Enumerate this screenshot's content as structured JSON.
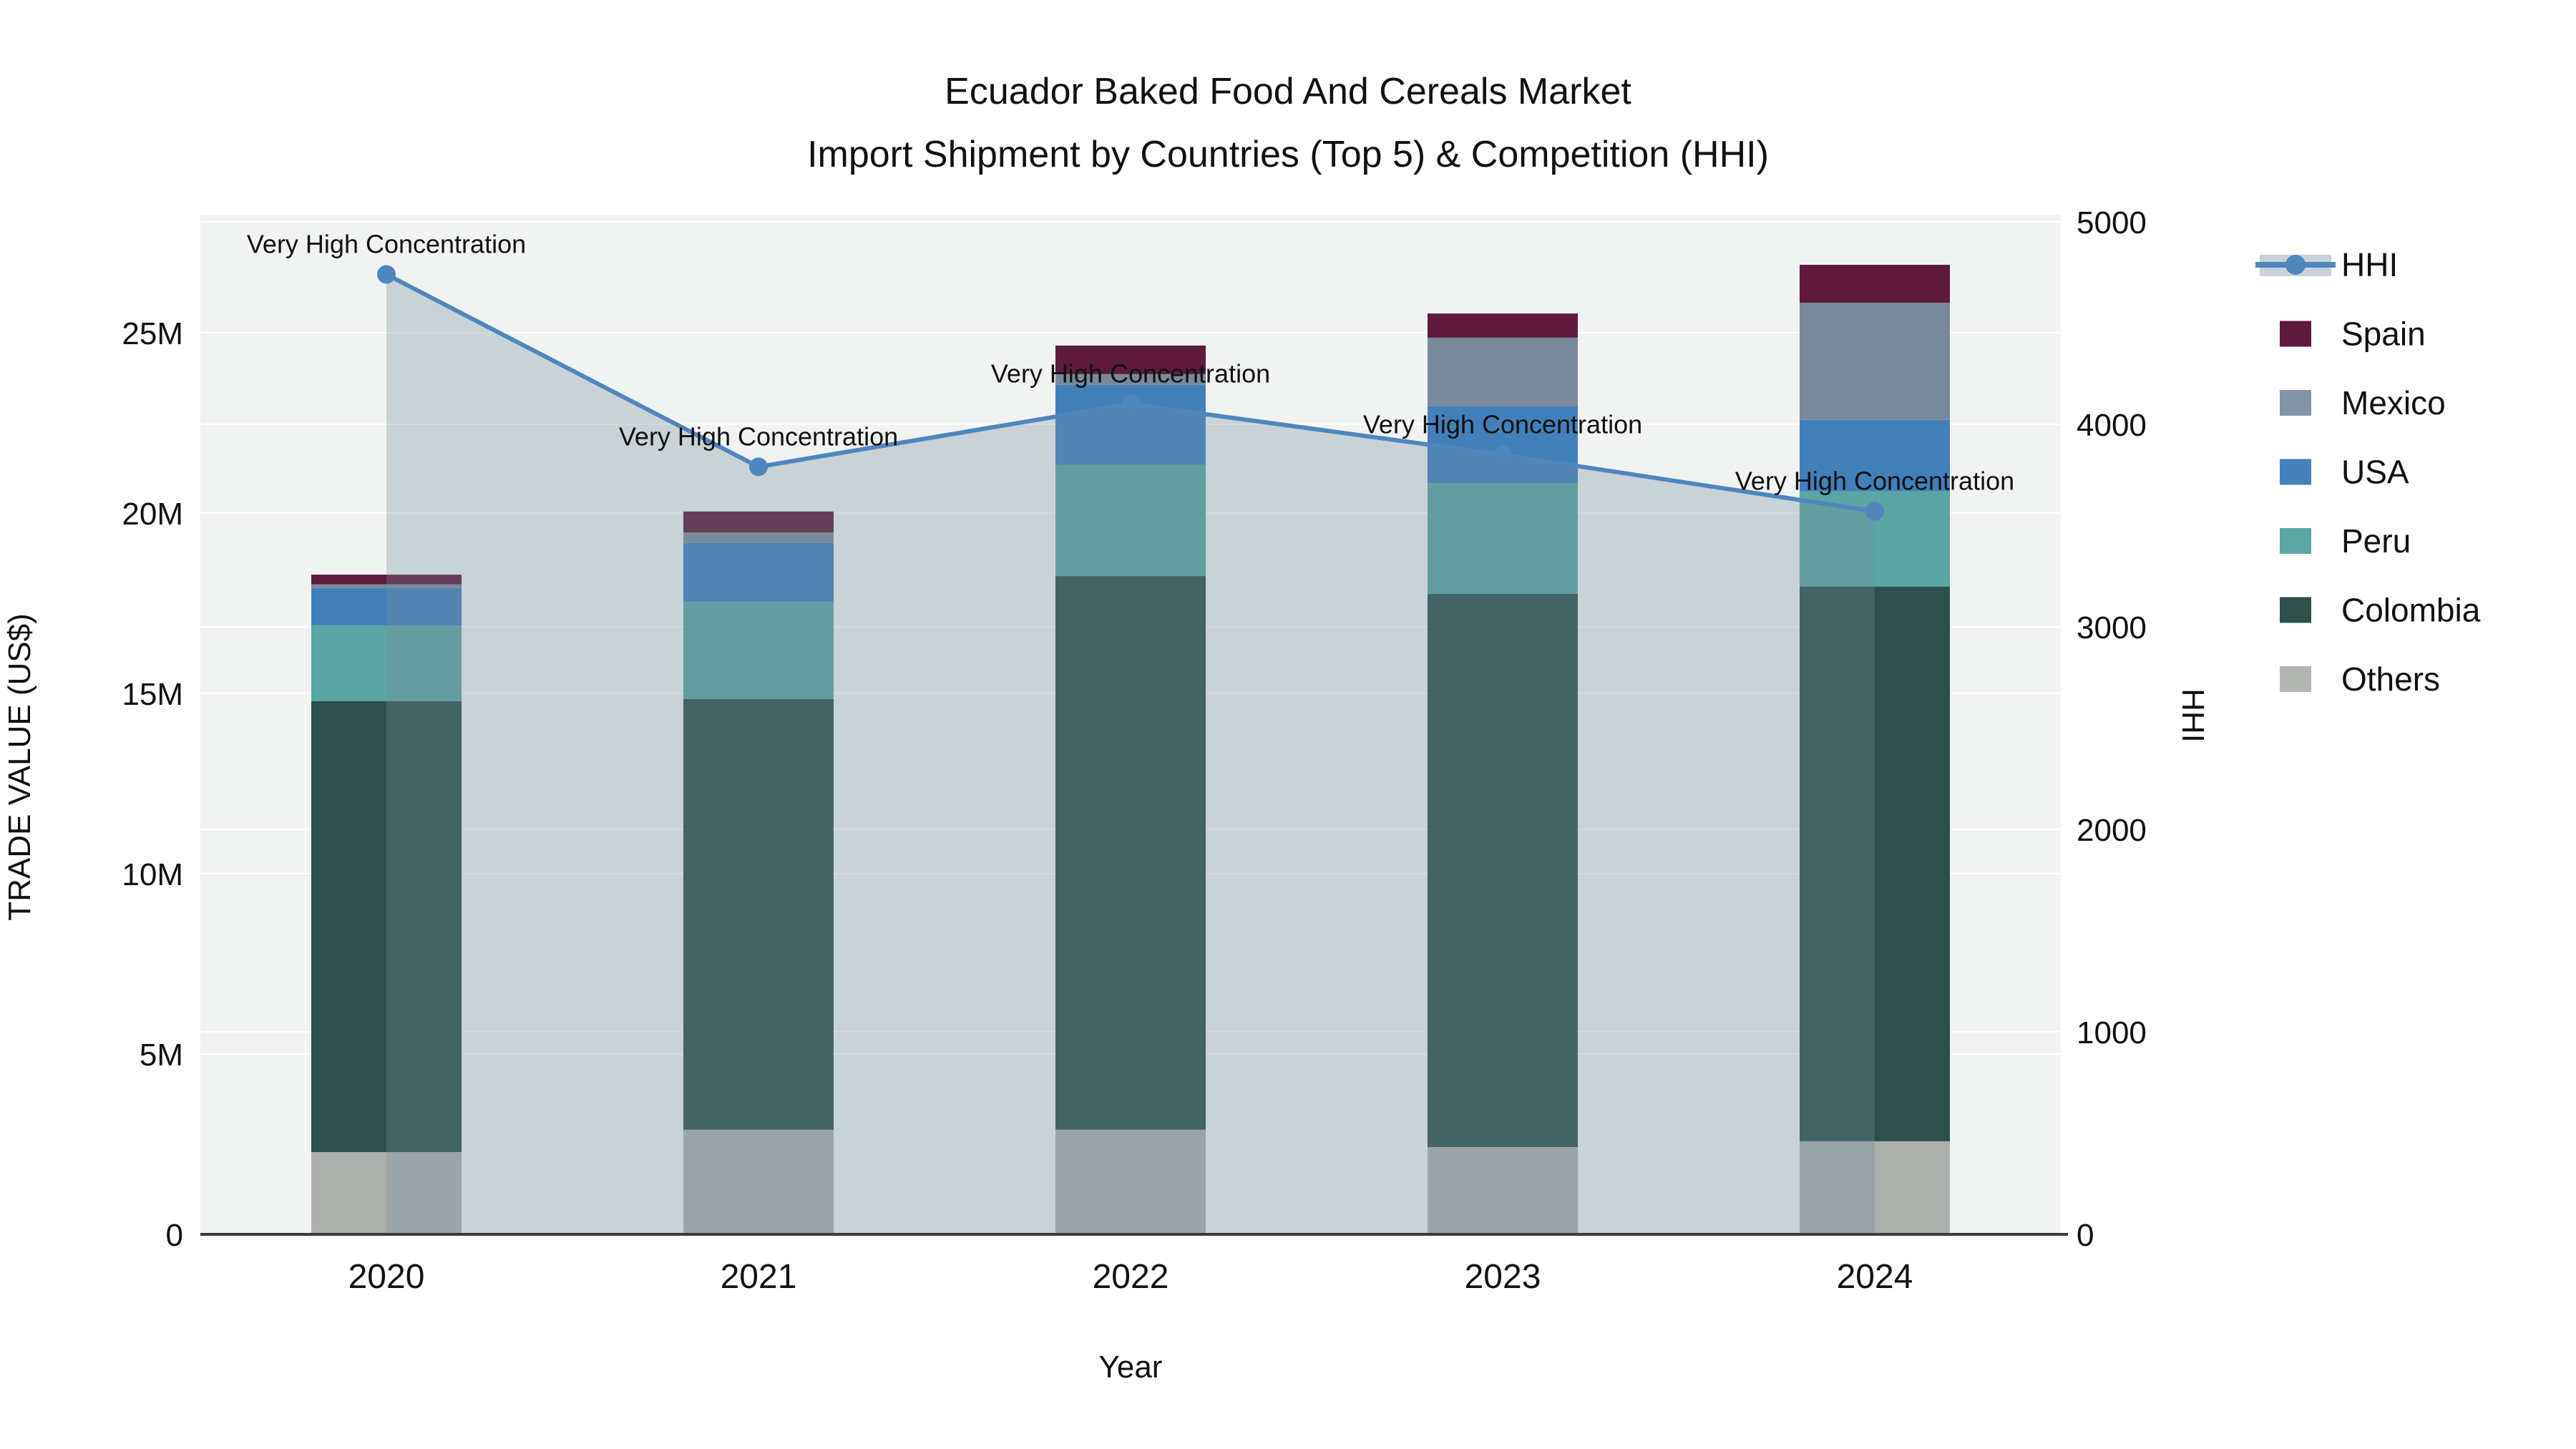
{
  "title": {
    "line1": "Ecuador Baked Food And Cereals Market",
    "line2": "Import Shipment by Countries (Top 5) & Competition (HHI)"
  },
  "axis_titles": {
    "left": "TRADE VALUE (US$)",
    "right": "HHI",
    "x": "Year"
  },
  "legend": {
    "items": [
      {
        "label": "HHI",
        "type": "line",
        "color": "#4E86BE"
      },
      {
        "label": "Spain",
        "type": "swatch",
        "color": "#5E1A3C"
      },
      {
        "label": "Mexico",
        "type": "swatch",
        "color": "#8493A6"
      },
      {
        "label": "USA",
        "type": "swatch",
        "color": "#4380BC"
      },
      {
        "label": "Peru",
        "type": "swatch",
        "color": "#5BA7A3"
      },
      {
        "label": "Colombia",
        "type": "swatch",
        "color": "#2F4F4B"
      },
      {
        "label": "Others",
        "type": "swatch",
        "color": "#B2B4B2"
      }
    ]
  },
  "chart_data": {
    "type": "bar+line",
    "title": "Ecuador Baked Food And Cereals Market — Import Shipment by Countries (Top 5) & Competition (HHI)",
    "categories": [
      "2020",
      "2021",
      "2022",
      "2023",
      "2024"
    ],
    "xlabel": "Year",
    "left_axis": {
      "title": "TRADE VALUE (US$)",
      "tick_labels": [
        "0",
        "5M",
        "10M",
        "15M",
        "20M",
        "25M"
      ],
      "tick_values_musd": [
        0,
        5,
        10,
        15,
        20,
        25
      ],
      "max_musd": 28.27
    },
    "right_axis": {
      "title": "HHI",
      "tick_labels": [
        "0",
        "1000",
        "2000",
        "3000",
        "4000",
        "5000"
      ],
      "tick_values": [
        0,
        1000,
        2000,
        3000,
        4000,
        5000
      ],
      "max": 5035
    },
    "stack_note": "series listed bottom-to-top of stacked bars, values in million US$",
    "series": [
      {
        "name": "Others",
        "color": "#ADAFAD",
        "values_musd": [
          2.28,
          2.9,
          2.9,
          2.42,
          2.58
        ]
      },
      {
        "name": "Colombia",
        "color": "#2E4F4A",
        "values_musd": [
          12.5,
          11.94,
          15.35,
          15.34,
          15.38
        ]
      },
      {
        "name": "Peru",
        "color": "#59A6A2",
        "values_musd": [
          2.1,
          2.7,
          3.08,
          3.07,
          2.64
        ]
      },
      {
        "name": "USA",
        "color": "#4280BB",
        "values_musd": [
          1.04,
          1.63,
          2.22,
          2.13,
          1.98
        ]
      },
      {
        "name": "Mexico",
        "color": "#79899B",
        "values_musd": [
          0.1,
          0.29,
          0.3,
          1.9,
          3.25
        ]
      },
      {
        "name": "Spain",
        "color": "#5E1A3C",
        "values_musd": [
          0.27,
          0.58,
          0.79,
          0.67,
          1.05
        ]
      }
    ],
    "bar_totals_musd": [
      18.29,
      20.04,
      24.64,
      25.53,
      26.88
    ],
    "hhi": {
      "name": "HHI",
      "line_color": "#4E86BE",
      "area_fill": "rgba(119,144,155,0.32)",
      "values": [
        4740,
        3790,
        4100,
        3850,
        3570
      ]
    },
    "annotations": [
      {
        "text": "Very High Concentration",
        "year": "2020"
      },
      {
        "text": "Very High Concentration",
        "year": "2021"
      },
      {
        "text": "Very High Concentration",
        "year": "2022"
      },
      {
        "text": "Very High Concentration",
        "year": "2023"
      },
      {
        "text": "Very High Concentration",
        "year": "2024"
      }
    ],
    "legend_order": [
      "HHI",
      "Spain",
      "Mexico",
      "USA",
      "Peru",
      "Colombia",
      "Others"
    ],
    "grid": true,
    "legend_position": "right"
  }
}
